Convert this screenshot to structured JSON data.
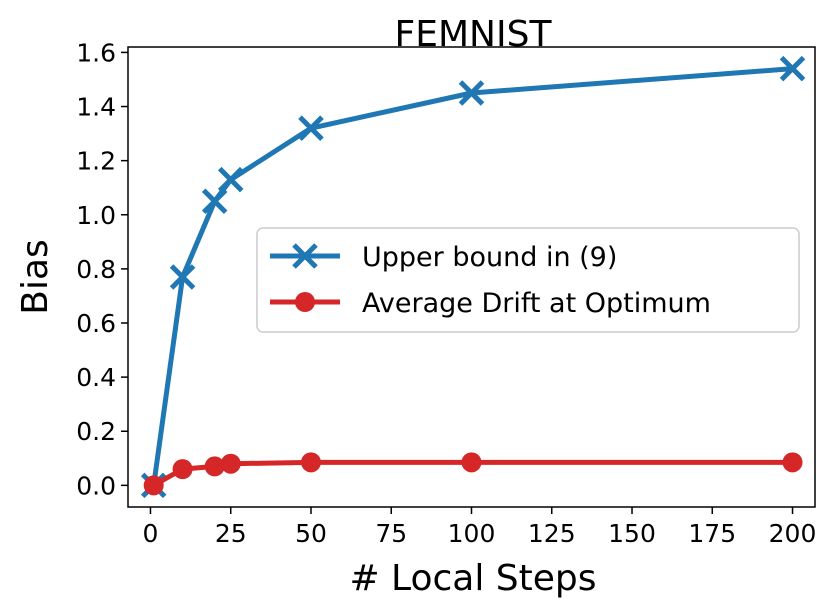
{
  "chart_data": {
    "type": "line",
    "title": "FEMNIST",
    "xlabel": "# Local Steps",
    "ylabel": "Bias",
    "xlim": [
      -7,
      207
    ],
    "ylim": [
      -0.08,
      1.62
    ],
    "xticks": [
      0,
      25,
      50,
      75,
      100,
      125,
      150,
      175,
      200
    ],
    "yticks": [
      0.0,
      0.2,
      0.4,
      0.6,
      0.8,
      1.0,
      1.2,
      1.4,
      1.6
    ],
    "xtick_labels": [
      "0",
      "25",
      "50",
      "75",
      "100",
      "125",
      "150",
      "175",
      "200"
    ],
    "ytick_labels": [
      "0.0",
      "0.2",
      "0.4",
      "0.6",
      "0.8",
      "1.0",
      "1.2",
      "1.4",
      "1.6"
    ],
    "grid": false,
    "legend_position": "center-right",
    "series": [
      {
        "name": "Upper bound in (9)",
        "color": "#1f77b4",
        "marker": "x",
        "x": [
          1,
          10,
          20,
          25,
          50,
          100,
          200
        ],
        "y": [
          0.0,
          0.77,
          1.05,
          1.13,
          1.32,
          1.45,
          1.54
        ]
      },
      {
        "name": "Average Drift at Optimum",
        "color": "#d62728",
        "marker": "circle",
        "x": [
          1,
          10,
          20,
          25,
          50,
          100,
          200
        ],
        "y": [
          0.0,
          0.06,
          0.07,
          0.08,
          0.085,
          0.085,
          0.085
        ]
      }
    ]
  }
}
